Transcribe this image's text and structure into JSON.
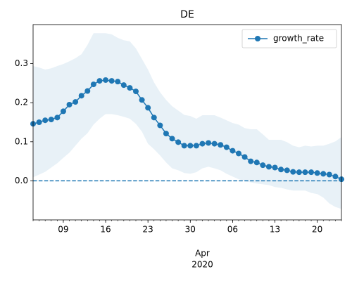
{
  "chart_data": {
    "type": "line",
    "title": "DE",
    "x": [
      "2020-03-04",
      "2020-03-05",
      "2020-03-06",
      "2020-03-07",
      "2020-03-08",
      "2020-03-09",
      "2020-03-10",
      "2020-03-11",
      "2020-03-12",
      "2020-03-13",
      "2020-03-14",
      "2020-03-15",
      "2020-03-16",
      "2020-03-17",
      "2020-03-18",
      "2020-03-19",
      "2020-03-20",
      "2020-03-21",
      "2020-03-22",
      "2020-03-23",
      "2020-03-24",
      "2020-03-25",
      "2020-03-26",
      "2020-03-27",
      "2020-03-28",
      "2020-03-29",
      "2020-03-30",
      "2020-03-31",
      "2020-04-01",
      "2020-04-02",
      "2020-04-03",
      "2020-04-04",
      "2020-04-05",
      "2020-04-06",
      "2020-04-07",
      "2020-04-08",
      "2020-04-09",
      "2020-04-10",
      "2020-04-11",
      "2020-04-12",
      "2020-04-13",
      "2020-04-14",
      "2020-04-15",
      "2020-04-16",
      "2020-04-17",
      "2020-04-18",
      "2020-04-19",
      "2020-04-20",
      "2020-04-21",
      "2020-04-22",
      "2020-04-23",
      "2020-04-24"
    ],
    "series": [
      {
        "name": "growth_rate",
        "color": "#1f77b4",
        "marker": "circle",
        "values": [
          0.146,
          0.15,
          0.155,
          0.157,
          0.162,
          0.178,
          0.195,
          0.202,
          0.218,
          0.23,
          0.247,
          0.256,
          0.258,
          0.256,
          0.254,
          0.245,
          0.238,
          0.229,
          0.207,
          0.187,
          0.162,
          0.142,
          0.121,
          0.108,
          0.099,
          0.09,
          0.09,
          0.09,
          0.095,
          0.097,
          0.095,
          0.092,
          0.086,
          0.077,
          0.07,
          0.061,
          0.05,
          0.047,
          0.04,
          0.036,
          0.034,
          0.029,
          0.027,
          0.023,
          0.022,
          0.022,
          0.022,
          0.02,
          0.018,
          0.016,
          0.011,
          0.004
        ]
      }
    ],
    "band": {
      "color": "#1f77b4",
      "alpha": 0.1,
      "upper": [
        0.294,
        0.29,
        0.285,
        0.288,
        0.294,
        0.299,
        0.306,
        0.314,
        0.324,
        0.348,
        0.378,
        0.378,
        0.378,
        0.375,
        0.366,
        0.36,
        0.357,
        0.339,
        0.312,
        0.285,
        0.252,
        0.227,
        0.207,
        0.191,
        0.18,
        0.169,
        0.166,
        0.159,
        0.168,
        0.168,
        0.168,
        0.162,
        0.155,
        0.148,
        0.144,
        0.135,
        0.132,
        0.132,
        0.119,
        0.105,
        0.105,
        0.105,
        0.099,
        0.09,
        0.086,
        0.09,
        0.088,
        0.09,
        0.09,
        0.095,
        0.101,
        0.112
      ],
      "lower": [
        0.009,
        0.016,
        0.023,
        0.034,
        0.045,
        0.059,
        0.072,
        0.09,
        0.108,
        0.122,
        0.144,
        0.159,
        0.171,
        0.171,
        0.168,
        0.164,
        0.159,
        0.146,
        0.126,
        0.095,
        0.081,
        0.065,
        0.047,
        0.032,
        0.027,
        0.02,
        0.018,
        0.022,
        0.032,
        0.036,
        0.032,
        0.027,
        0.018,
        0.011,
        0.004,
        0.0,
        -0.004,
        -0.007,
        -0.009,
        -0.011,
        -0.016,
        -0.018,
        -0.022,
        -0.025,
        -0.025,
        -0.025,
        -0.031,
        -0.034,
        -0.043,
        -0.058,
        -0.067,
        -0.072
      ]
    },
    "reference_line": {
      "value": 0,
      "style": "dashed",
      "color": "#1f77b4"
    },
    "xlim": [
      "2020-03-04",
      "2020-04-24"
    ],
    "xticks": [
      {
        "value": "2020-03-09",
        "label": "09"
      },
      {
        "value": "2020-03-16",
        "label": "16"
      },
      {
        "value": "2020-03-23",
        "label": "23"
      },
      {
        "value": "2020-03-30",
        "label": "30"
      },
      {
        "value": "2020-04-06",
        "label": "06"
      },
      {
        "value": "2020-04-13",
        "label": "13"
      },
      {
        "value": "2020-04-20",
        "label": "20"
      }
    ],
    "x_secondary_label": {
      "value": "2020-04-01",
      "month": "Apr",
      "year": "2020"
    },
    "ylim": [
      -0.1,
      0.4
    ],
    "yticks": [
      {
        "value": 0,
        "label": "0.0"
      },
      0.1,
      0.2,
      0.3
    ],
    "legend": "upper right",
    "grid": false
  }
}
